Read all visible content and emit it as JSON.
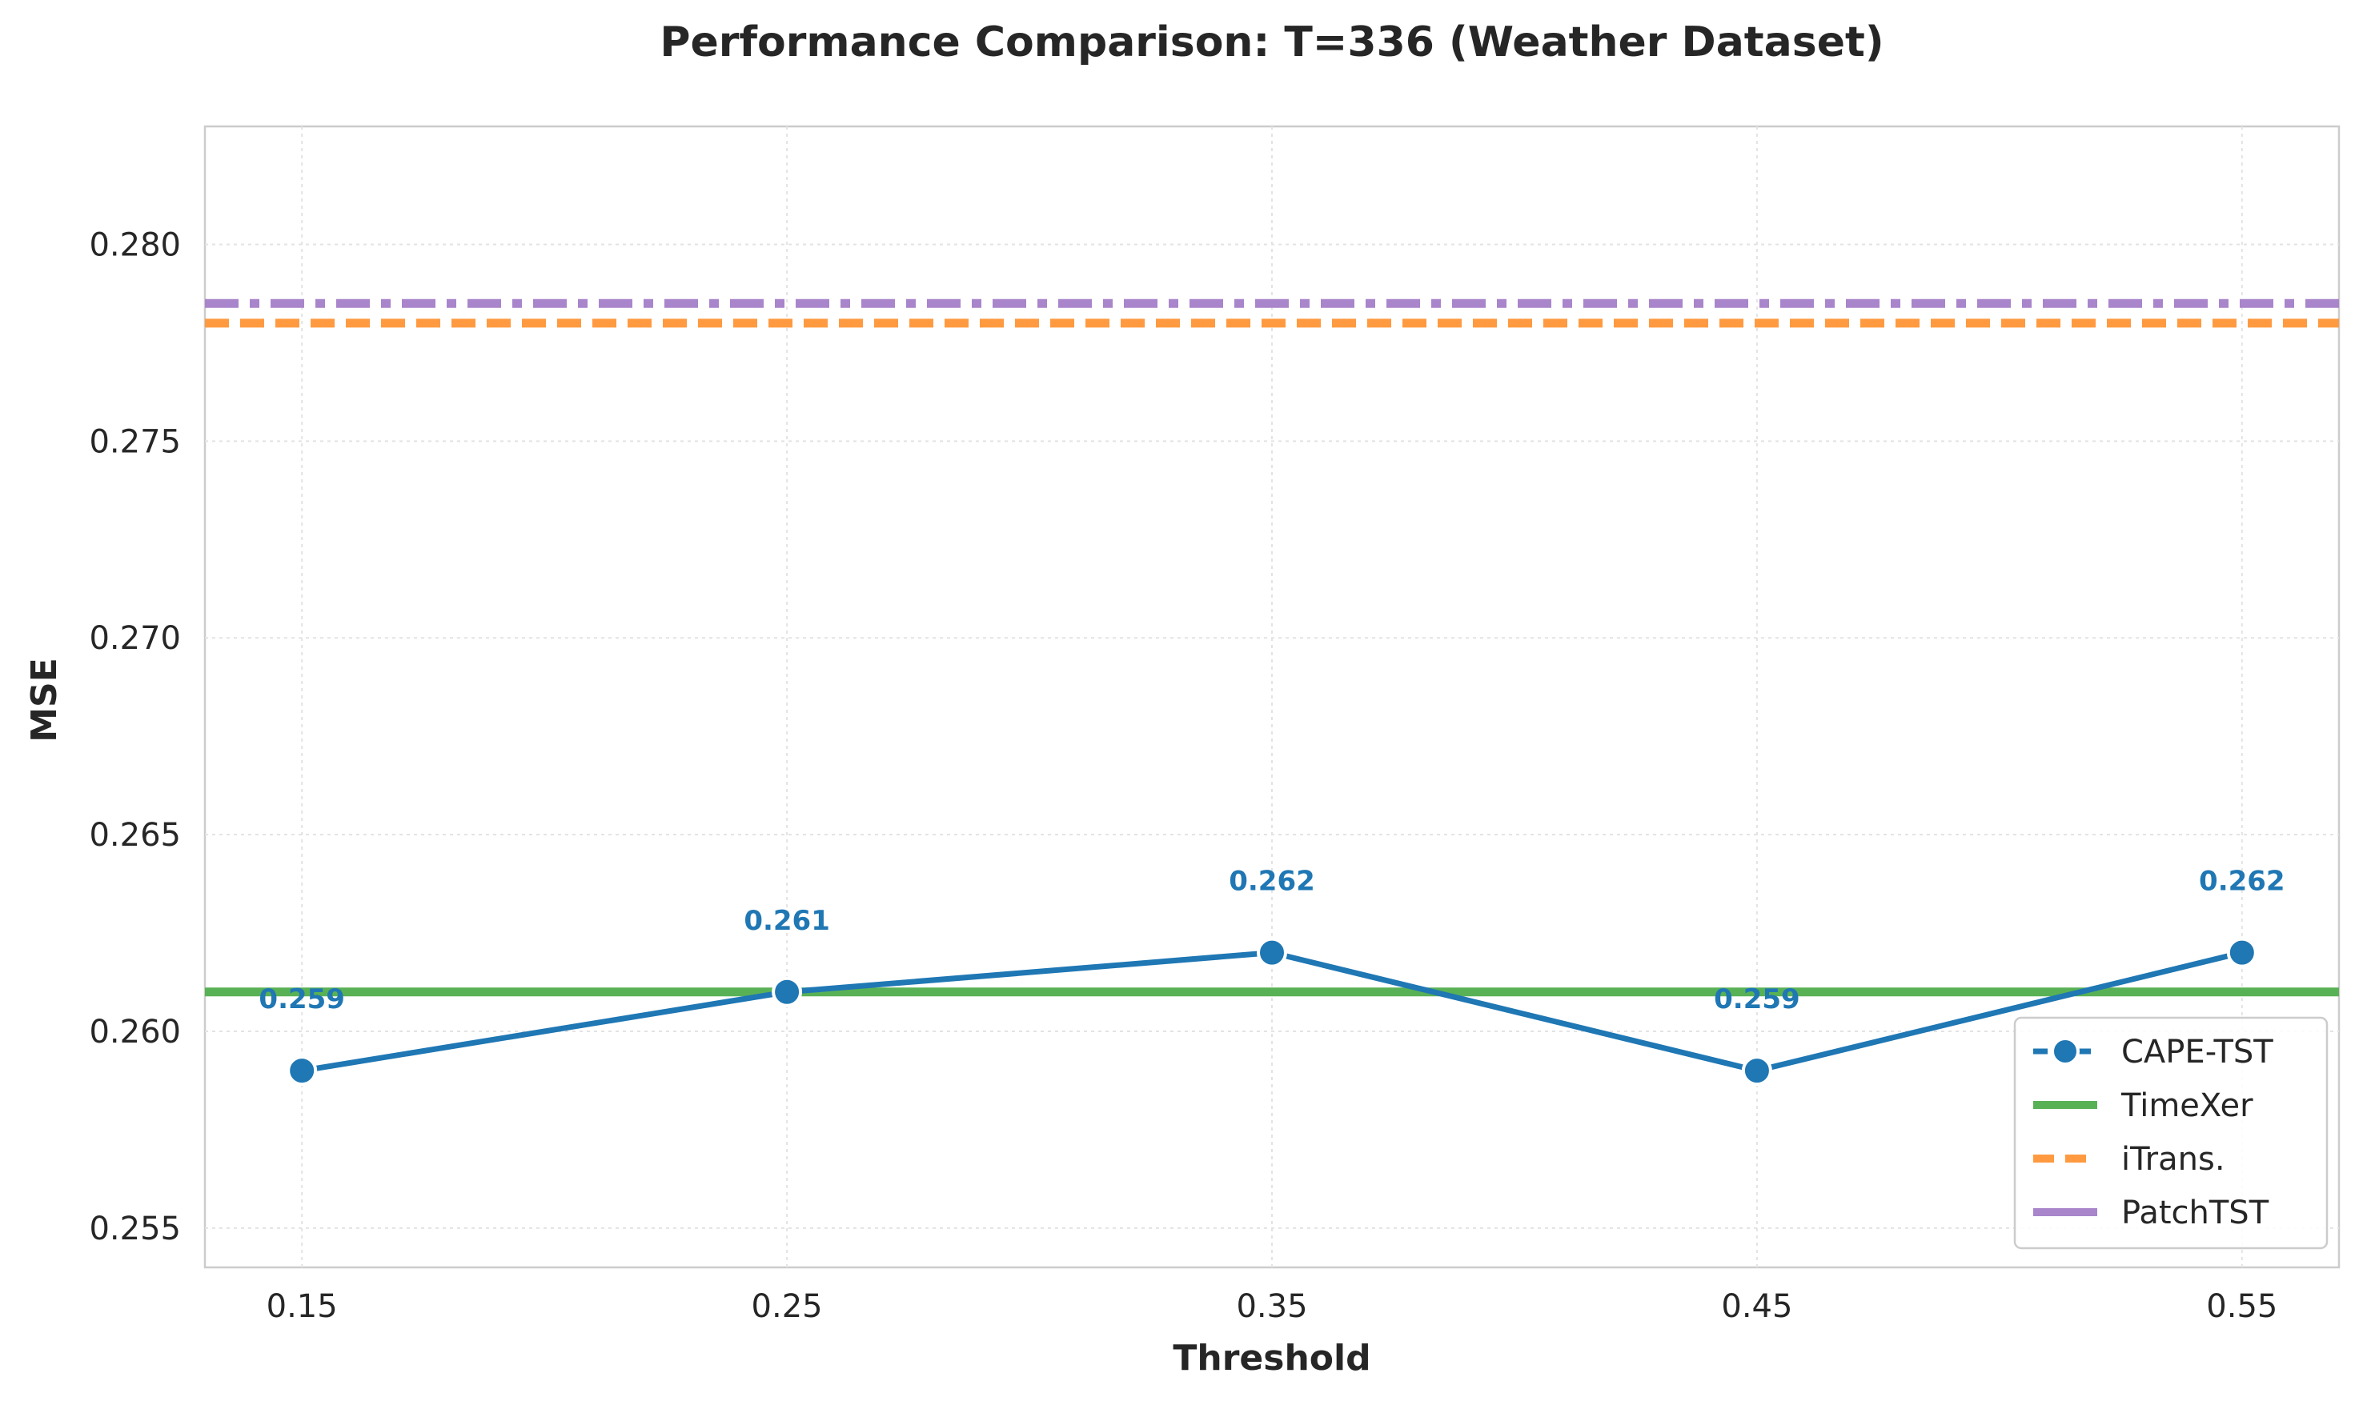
{
  "chart_data": {
    "type": "line",
    "title": "Performance Comparison: T=336 (Weather Dataset)",
    "xlabel": "Threshold",
    "ylabel": "MSE",
    "x": [
      0.15,
      0.25,
      0.35,
      0.45,
      0.55
    ],
    "x_tick_labels": [
      "0.15",
      "0.25",
      "0.35",
      "0.45",
      "0.55"
    ],
    "y_ticks": [
      0.255,
      0.26,
      0.265,
      0.27,
      0.275,
      0.28
    ],
    "y_tick_labels": [
      "0.255",
      "0.260",
      "0.265",
      "0.270",
      "0.275",
      "0.280"
    ],
    "xlim": [
      0.13,
      0.57
    ],
    "ylim": [
      0.254,
      0.283
    ],
    "grid": true,
    "legend_position": "lower-right",
    "series": [
      {
        "name": "CAPE-TST",
        "kind": "line-markers",
        "color": "#1f77b4",
        "values": [
          0.259,
          0.261,
          0.262,
          0.259,
          0.262
        ],
        "data_labels": [
          "0.259",
          "0.261",
          "0.262",
          "0.259",
          "0.262"
        ]
      },
      {
        "name": "TimeXer",
        "kind": "hline",
        "style": "solid",
        "color": "#59b155",
        "value": 0.261
      },
      {
        "name": "iTrans.",
        "kind": "hline",
        "style": "dashed",
        "color": "#ff9a40",
        "value": 0.278
      },
      {
        "name": "PatchTST",
        "kind": "hline",
        "style": "dashdot",
        "color": "#a985cb",
        "value": 0.2785
      }
    ]
  }
}
